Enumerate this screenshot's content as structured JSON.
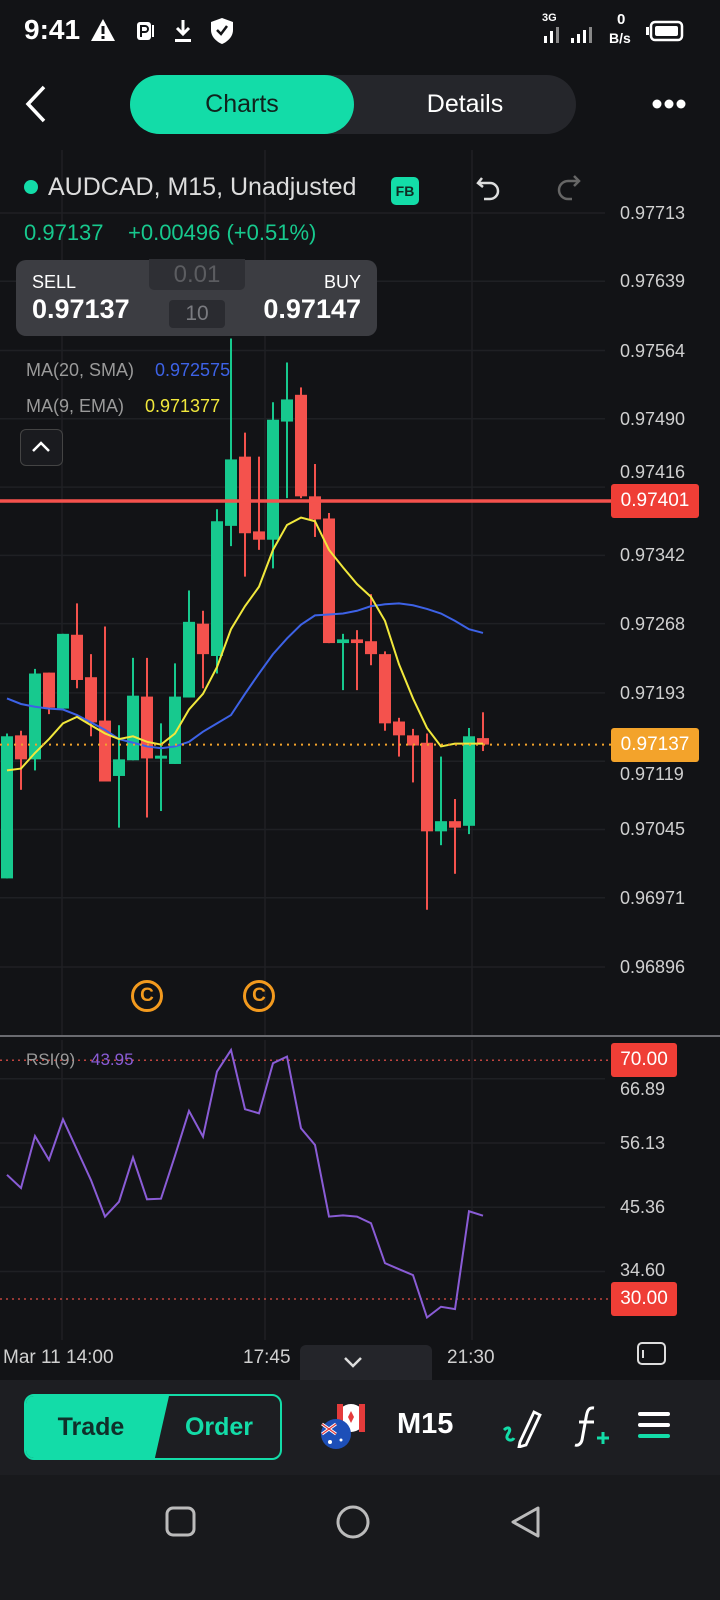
{
  "status_bar": {
    "time": "9:41",
    "network": "3G",
    "data_rate_value": "0",
    "data_rate_unit": "B/s",
    "icons": [
      "warning-icon",
      "parking-icon",
      "download-icon",
      "shield-check-icon",
      "signal-icon",
      "signal-icon",
      "battery-icon"
    ]
  },
  "header": {
    "tabs": [
      {
        "label": "Charts",
        "active": true
      },
      {
        "label": "Details",
        "active": false
      }
    ],
    "back_icon": "chevron-left-icon",
    "more_icon": "more-dots-icon"
  },
  "symbol": {
    "title": "AUDCAD, M15, Unadjusted",
    "badge": "FB",
    "price": "0.97137",
    "change": "+0.00496 (+0.51%)"
  },
  "trade_box": {
    "sell_label": "SELL",
    "sell_price": "0.97137",
    "buy_label": "BUY",
    "buy_price": "0.97147",
    "lot_step": "0.01",
    "lot_value": "10"
  },
  "indicators": {
    "ma20_label": "MA(20, SMA)",
    "ma20_value": "0.972575",
    "ma9_label": "MA(9, EMA)",
    "ma9_value": "0.971377",
    "rsi_label": "RSI(9)",
    "rsi_value": "43.95"
  },
  "colors": {
    "accent": "#13dca8",
    "up": "#17c98e",
    "down": "#f4524d",
    "ma20": "#3d62e6",
    "ma9": "#f1e83c",
    "rsi": "#8a5cd6",
    "current_price": "#f3a32b"
  },
  "chart_data": {
    "type": "candlestick",
    "title": "AUDCAD, M15, Unadjusted",
    "ylim": [
      0.96822,
      0.97781
    ],
    "y_ticks": [
      "0.97713",
      "0.97639",
      "0.97564",
      "0.97490",
      "0.97416",
      "0.97342",
      "0.97268",
      "0.97193",
      "0.97119",
      "0.97045",
      "0.96971",
      "0.96896"
    ],
    "x_ticks": [
      "Mar 11 14:00",
      "17:45",
      "21:30"
    ],
    "ohlc": [
      [
        0.96992,
        0.97149,
        0.96992,
        0.97146
      ],
      [
        0.97147,
        0.97152,
        0.97088,
        0.97121
      ],
      [
        0.97121,
        0.97219,
        0.97109,
        0.97214
      ],
      [
        0.97215,
        0.97215,
        0.9717,
        0.97177
      ],
      [
        0.97176,
        0.97257,
        0.97176,
        0.97257
      ],
      [
        0.97256,
        0.9729,
        0.97198,
        0.97207
      ],
      [
        0.9721,
        0.97235,
        0.97146,
        0.97161
      ],
      [
        0.97163,
        0.97265,
        0.97097,
        0.97097
      ],
      [
        0.97103,
        0.97158,
        0.97047,
        0.97121
      ],
      [
        0.9712,
        0.97231,
        0.9712,
        0.9719
      ],
      [
        0.97189,
        0.97231,
        0.97058,
        0.97122
      ],
      [
        0.97122,
        0.9716,
        0.97065,
        0.97125
      ],
      [
        0.97116,
        0.97225,
        0.97116,
        0.97189
      ],
      [
        0.97188,
        0.97304,
        0.97188,
        0.9727
      ],
      [
        0.97268,
        0.97282,
        0.97198,
        0.97235
      ],
      [
        0.97233,
        0.97392,
        0.97214,
        0.97379
      ],
      [
        0.97374,
        0.97577,
        0.97352,
        0.97446
      ],
      [
        0.97449,
        0.97475,
        0.97319,
        0.97366
      ],
      [
        0.97368,
        0.97449,
        0.97348,
        0.97359
      ],
      [
        0.97359,
        0.97508,
        0.97328,
        0.97489
      ],
      [
        0.97487,
        0.97551,
        0.97404,
        0.97511
      ],
      [
        0.97516,
        0.97524,
        0.97404,
        0.97406
      ],
      [
        0.97406,
        0.97441,
        0.97362,
        0.97381
      ],
      [
        0.97382,
        0.97388,
        0.97247,
        0.97247
      ],
      [
        0.97247,
        0.97257,
        0.97196,
        0.97251
      ],
      [
        0.97251,
        0.97261,
        0.97196,
        0.97247
      ],
      [
        0.97249,
        0.973,
        0.97223,
        0.97235
      ],
      [
        0.97235,
        0.97238,
        0.97152,
        0.9716
      ],
      [
        0.97162,
        0.97166,
        0.97124,
        0.97147
      ],
      [
        0.97147,
        0.97154,
        0.97096,
        0.97136
      ],
      [
        0.97139,
        0.97149,
        0.96958,
        0.97043
      ],
      [
        0.97043,
        0.97124,
        0.97028,
        0.97054
      ],
      [
        0.97054,
        0.97078,
        0.96997,
        0.97047
      ],
      [
        0.97049,
        0.97155,
        0.9704,
        0.97146
      ],
      [
        0.97144,
        0.97172,
        0.9713,
        0.97137
      ]
    ],
    "ma20": [
      0.97187,
      0.97181,
      0.97178,
      0.97176,
      0.97175,
      0.97169,
      0.97161,
      0.97153,
      0.97143,
      0.97139,
      0.97135,
      0.97133,
      0.97135,
      0.9714,
      0.97151,
      0.9716,
      0.97169,
      0.97192,
      0.97214,
      0.97235,
      0.97252,
      0.97267,
      0.97277,
      0.97278,
      0.97279,
      0.97282,
      0.97287,
      0.97289,
      0.9729,
      0.97288,
      0.97284,
      0.97279,
      0.97271,
      0.97262,
      0.97258
    ],
    "ma9": [
      0.97109,
      0.97111,
      0.97128,
      0.97143,
      0.9716,
      0.97167,
      0.97158,
      0.97149,
      0.97143,
      0.97146,
      0.9714,
      0.97137,
      0.97149,
      0.97175,
      0.97192,
      0.97221,
      0.97262,
      0.97287,
      0.97308,
      0.97348,
      0.97375,
      0.97383,
      0.97379,
      0.97348,
      0.97329,
      0.97311,
      0.97297,
      0.97271,
      0.97224,
      0.97187,
      0.97155,
      0.97135,
      0.97138,
      0.97138,
      0.97138
    ],
    "horizontal_line": {
      "value": "0.97401",
      "color": "#f4524d"
    },
    "current_price": {
      "value": "0.97137"
    },
    "event_markers": [
      {
        "label": "C",
        "candle_index": 10
      },
      {
        "label": "C",
        "candle_index": 18
      }
    ],
    "rsi": {
      "period": 9,
      "ylim": [
        23.1,
        73.9
      ],
      "y_ticks": [
        "66.89",
        "56.13",
        "45.36",
        "34.60"
      ],
      "levels": [
        {
          "value": "70.00"
        },
        {
          "value": "30.00"
        }
      ],
      "values": [
        50.8,
        48.6,
        57.3,
        53.3,
        60.1,
        55.0,
        49.9,
        43.8,
        46.3,
        53.7,
        46.7,
        46.8,
        54.0,
        61.5,
        57.2,
        68.1,
        71.7,
        61.8,
        61.1,
        69.5,
        70.6,
        58.6,
        55.8,
        43.8,
        44.0,
        43.8,
        42.7,
        36.0,
        35.0,
        34.0,
        26.9,
        28.7,
        28.3,
        44.7,
        43.95
      ]
    }
  },
  "toolbar": {
    "trade_label": "Trade",
    "order_label": "Order",
    "timeframe": "M15",
    "icons": [
      "flags-icon",
      "draw-icon",
      "function-add-icon",
      "menu-icon"
    ]
  },
  "navbar": {
    "icons": [
      "recent-apps-icon",
      "home-icon",
      "back-icon"
    ]
  }
}
